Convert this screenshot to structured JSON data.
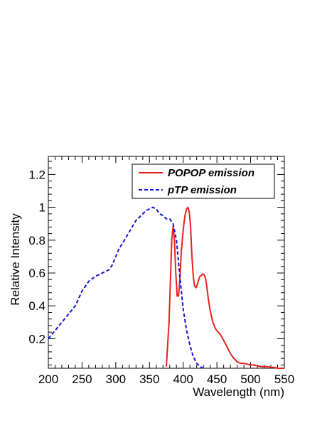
{
  "chart_data": {
    "type": "line",
    "xlabel": "Wavelength (nm)",
    "ylabel": "Relative Intensity",
    "xlim": [
      200,
      550
    ],
    "ylim": [
      0.02,
      1.31
    ],
    "x_ticks": [
      200,
      250,
      300,
      350,
      400,
      450,
      500,
      550
    ],
    "y_ticks": [
      0.2,
      0.4,
      0.6,
      0.8,
      1,
      1.2
    ],
    "grid": false,
    "legend_position": "top-right",
    "series": [
      {
        "name": "POPOP emission",
        "color": "#e8211f",
        "style": "solid",
        "x": [
          375,
          379,
          381,
          383,
          385,
          387,
          389,
          391,
          393,
          395,
          397,
          399,
          401,
          403,
          405,
          407,
          409,
          411,
          413,
          415,
          417,
          419,
          421,
          423,
          425,
          427,
          429,
          431,
          433,
          435,
          437,
          440,
          444,
          448,
          452,
          456,
          460,
          465,
          470,
          475,
          480,
          485,
          490,
          495,
          500,
          505,
          510,
          515,
          520,
          525,
          530,
          535,
          540,
          545,
          550
        ],
        "y": [
          0.03,
          0.3,
          0.55,
          0.8,
          0.885,
          0.8,
          0.6,
          0.46,
          0.46,
          0.56,
          0.72,
          0.82,
          0.9,
          0.96,
          0.99,
          1.0,
          0.97,
          0.88,
          0.7,
          0.58,
          0.52,
          0.51,
          0.53,
          0.56,
          0.58,
          0.585,
          0.595,
          0.59,
          0.57,
          0.52,
          0.45,
          0.37,
          0.3,
          0.26,
          0.24,
          0.22,
          0.19,
          0.15,
          0.11,
          0.08,
          0.06,
          0.05,
          0.05,
          0.045,
          0.04,
          0.04,
          0.035,
          0.03,
          0.03,
          0.03,
          0.025,
          0.025,
          0.02,
          0.02,
          0.02
        ]
      },
      {
        "name": "pTP emission",
        "color": "#1414d8",
        "style": "dashed",
        "x": [
          200,
          210,
          220,
          230,
          240,
          250,
          255,
          260,
          270,
          280,
          290,
          295,
          300,
          305,
          310,
          320,
          330,
          335,
          340,
          345,
          350,
          355,
          360,
          365,
          370,
          375,
          380,
          385,
          390,
          395,
          400,
          405,
          410,
          415,
          420,
          425,
          430
        ],
        "y": [
          0.2,
          0.25,
          0.3,
          0.35,
          0.4,
          0.49,
          0.52,
          0.55,
          0.58,
          0.6,
          0.62,
          0.65,
          0.7,
          0.75,
          0.78,
          0.85,
          0.92,
          0.94,
          0.96,
          0.98,
          0.99,
          1.0,
          0.99,
          0.96,
          0.95,
          0.93,
          0.93,
          0.9,
          0.8,
          0.58,
          0.38,
          0.25,
          0.16,
          0.09,
          0.05,
          0.03,
          0.02
        ]
      }
    ]
  }
}
